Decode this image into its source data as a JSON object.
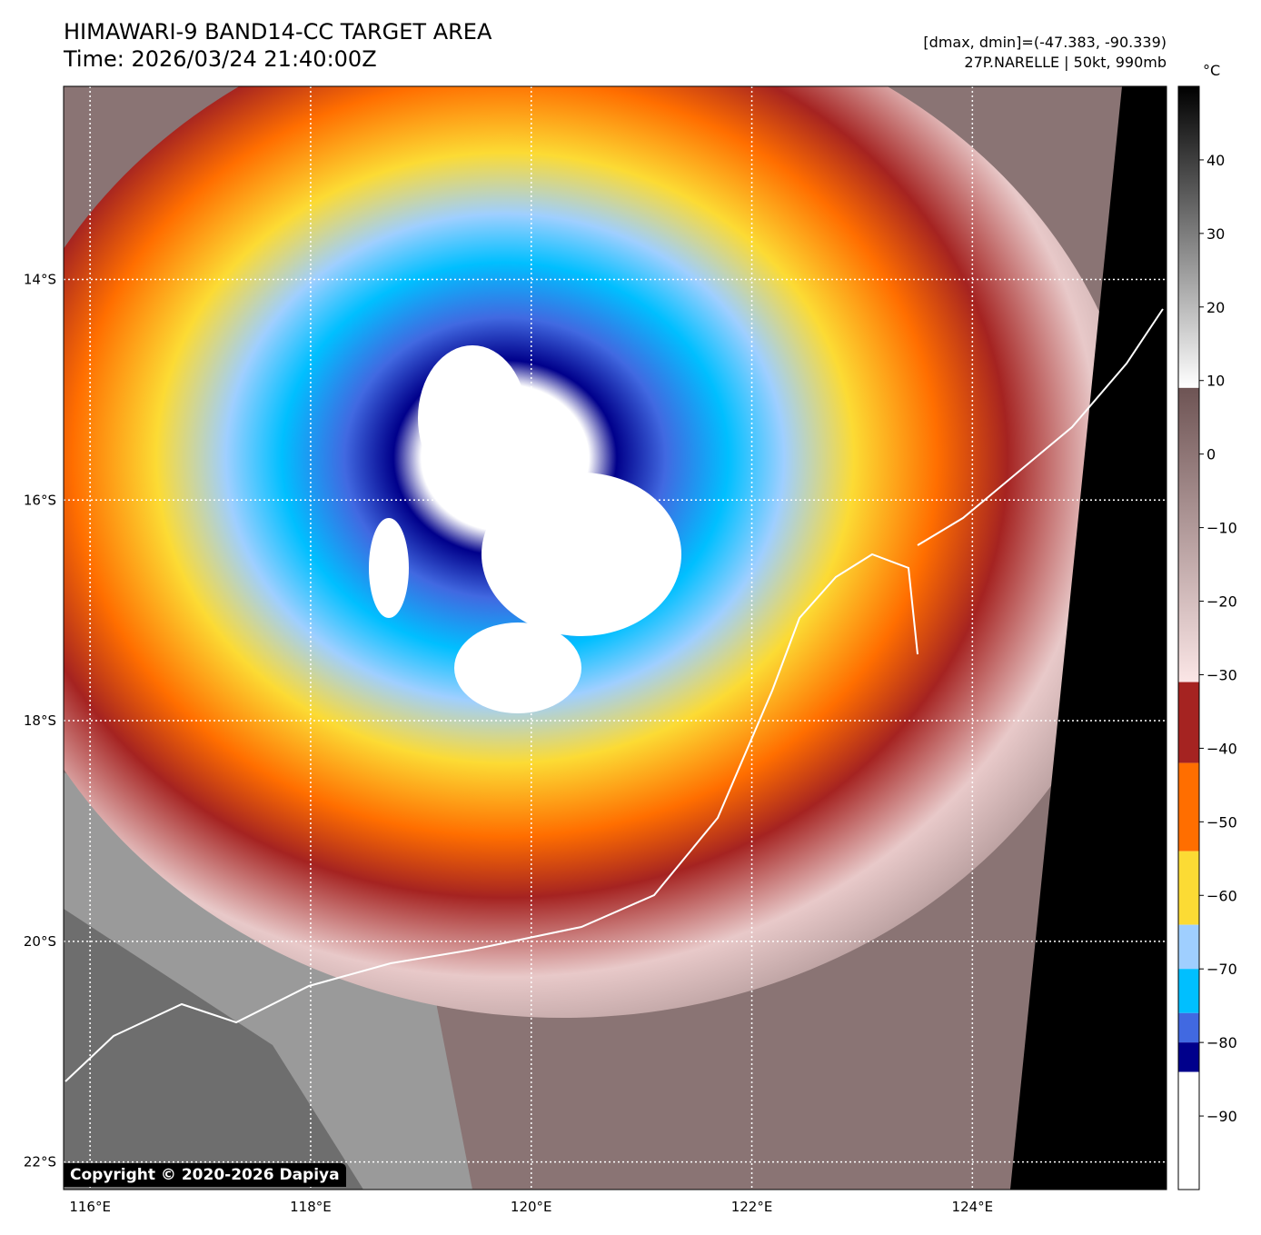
{
  "header": {
    "title_line1": "HIMAWARI-9 BAND14-CC TARGET AREA",
    "title_line2": "Time: 2026/03/24 21:40:00Z",
    "dminmax": "[dmax, dmin]=(-47.383, -90.339)",
    "storm": "27P.NARELLE | 50kt, 990mb"
  },
  "map": {
    "lon_labels": [
      "116°E",
      "118°E",
      "120°E",
      "122°E",
      "124°E"
    ],
    "lat_labels": [
      "14°S",
      "16°S",
      "18°S",
      "20°S",
      "22°S"
    ],
    "lon_range": [
      115.76,
      125.76
    ],
    "lat_range": [
      -12.25,
      -22.25
    ],
    "copyright": "Copyright © 2020-2026 Dapiya"
  },
  "colorbar": {
    "unit": "°C",
    "range": [
      -100,
      50
    ],
    "ticks": [
      "40",
      "30",
      "20",
      "10",
      "0",
      "−10",
      "−20",
      "−30",
      "−40",
      "−50",
      "−60",
      "−70",
      "−80",
      "−90"
    ],
    "tick_values": [
      40,
      30,
      20,
      10,
      0,
      -10,
      -20,
      -30,
      -40,
      -50,
      -60,
      -70,
      -80,
      -90
    ],
    "bands": [
      {
        "from": 50,
        "to": 9,
        "color": "gray-gradient"
      },
      {
        "from": 9,
        "to": -31,
        "color": "brown-pink-gradient"
      },
      {
        "from": -31,
        "to": -42,
        "color": "#a52321"
      },
      {
        "from": -42,
        "to": -54,
        "color": "#ff6e00"
      },
      {
        "from": -54,
        "to": -64,
        "color": "#fcdb34"
      },
      {
        "from": -64,
        "to": -70,
        "color": "#9fcfff"
      },
      {
        "from": -70,
        "to": -76,
        "color": "#00bfff"
      },
      {
        "from": -76,
        "to": -80,
        "color": "#4169e1"
      },
      {
        "from": -80,
        "to": -84,
        "color": "#00008b"
      },
      {
        "from": -84,
        "to": -100,
        "color": "#ffffff"
      }
    ]
  }
}
